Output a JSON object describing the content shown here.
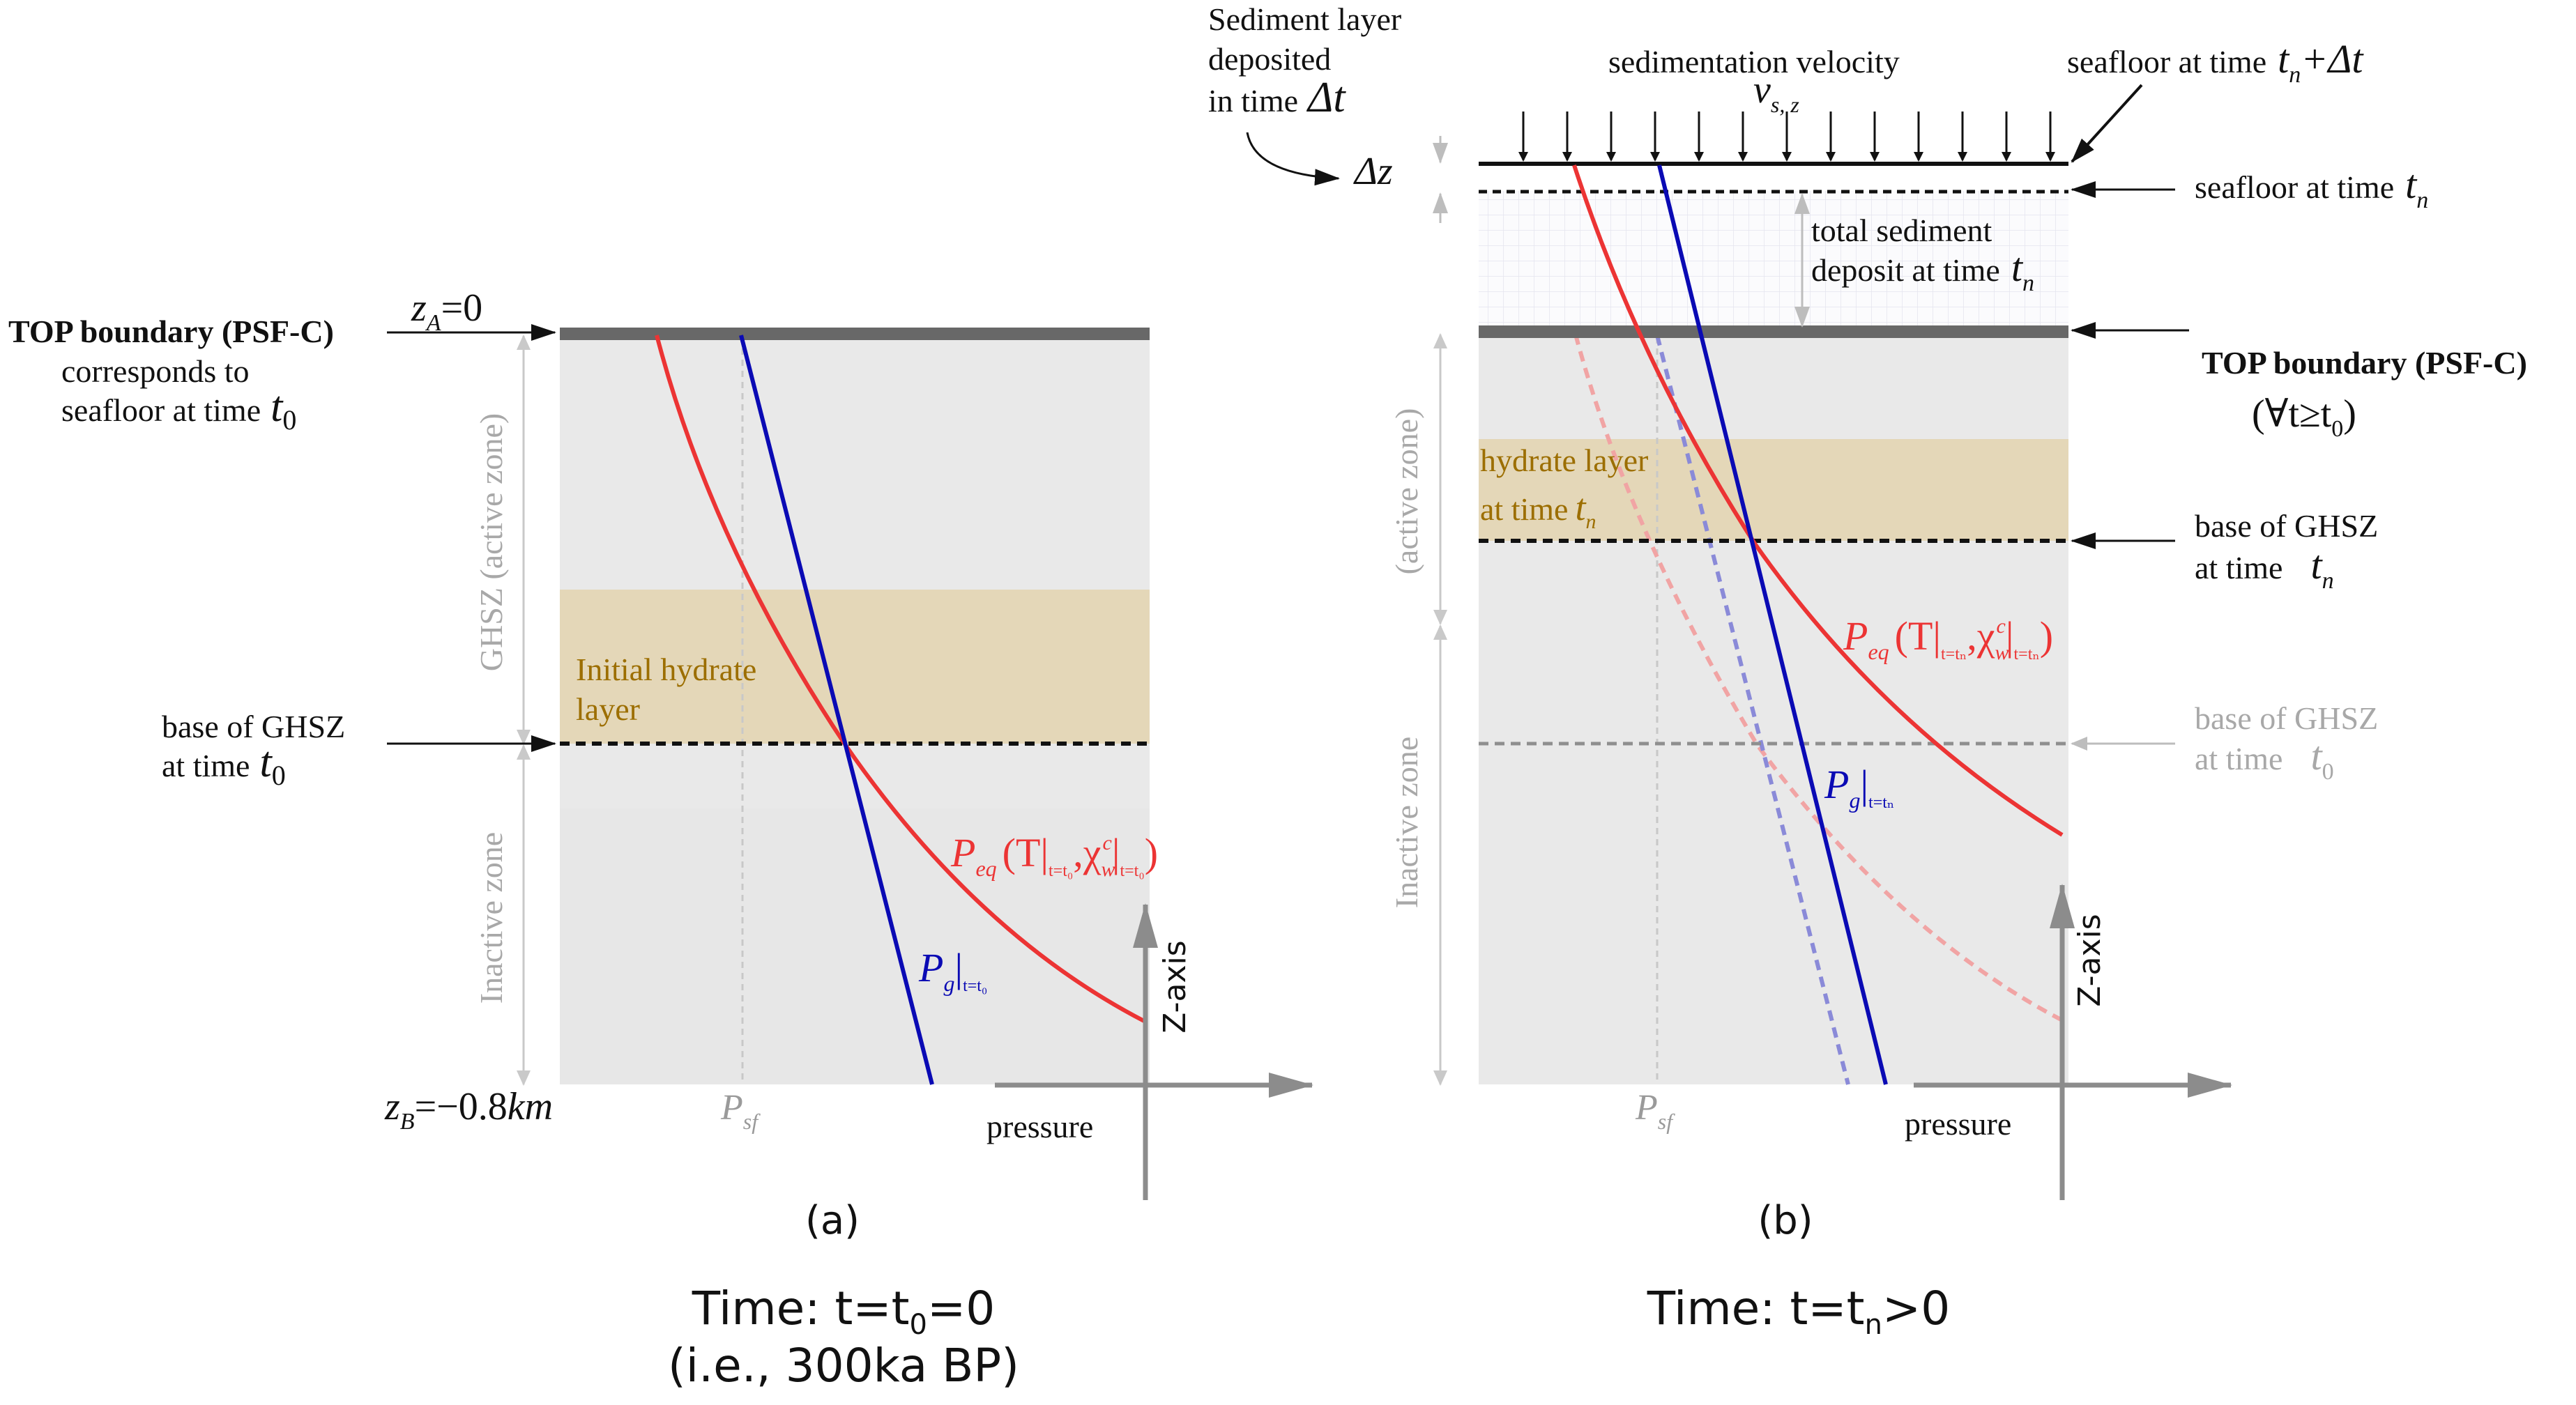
{
  "colors": {
    "background": "#ffffff",
    "zone_fill": "#e9e9e9",
    "hydrate_fill": "#e4d7b8",
    "hydrate_text": "#9c6e00",
    "boundary": "#686868",
    "red_curve": "#ec3434",
    "red_faded": "#f1a4a4",
    "blue_curve": "#0a0ab4",
    "blue_faded": "#8a8ad8",
    "gray_text": "#9a9a9a",
    "axis": "#8c8c8c",
    "black": "#111111"
  },
  "panel_a": {
    "caption": "(a)",
    "time_label": "Time: t=t",
    "time_sub": "0",
    "time_suffix": "=0",
    "time_note": "(i.e., 300ka BP)",
    "top_boundary": "TOP boundary (PSF-C)",
    "corresponds_to": "corresponds to",
    "seafloor_at_time": "seafloor at time",
    "t0": "t",
    "t0_sub": "0",
    "za_label": "z",
    "za_sub": "A",
    "za_value": "=0",
    "zb_label": "z",
    "zb_sub": "B",
    "zb_value": "=−0.8",
    "zb_unit": "km",
    "ghsz_label": "GHSZ (active zone)",
    "inactive_label": "Inactive zone",
    "hydrate_label_1": "Initial hydrate",
    "hydrate_label_2": "layer",
    "base_ghsz": "base of GHSZ",
    "at_time": "at time",
    "peq": "P",
    "peq_sub": "eq",
    "peq_args": "(T|",
    "peq_t_sub": "t=t₀",
    "peq_chi": ",χ",
    "peq_chi_sub": "w",
    "peq_chi_sup": "c",
    "peq_close": "|",
    "peq_close_sub": "t=t₀",
    "peq_paren": ")",
    "pg": "P",
    "pg_sub": "g",
    "pg_bar": "|",
    "pg_t_sub": "t=t₀",
    "psf": "P",
    "psf_sub": "sf",
    "pressure": "pressure",
    "zaxis": "Z-axis"
  },
  "panel_b": {
    "caption": "(b)",
    "time_label": "Time: t=t",
    "time_sub": "n",
    "time_suffix": ">0",
    "sediment_1": "Sediment layer",
    "sediment_2": "deposited",
    "sediment_3": "in time",
    "delta_t": "Δt",
    "sed_velocity": "sedimentation velocity",
    "v": "v",
    "v_sub": "s, z",
    "seafloor_tn_dt": "seafloor at time",
    "tn_dt": "t",
    "tn_dt_sub": "n",
    "tn_dt_suffix": "+Δt",
    "delta_z": "Δz",
    "seafloor_tn": "seafloor at time",
    "tn": "t",
    "tn_sub": "n",
    "total_sed_1": "total sediment",
    "total_sed_2": "deposit at time",
    "top_boundary": "TOP boundary (PSF-C)",
    "forall": "(∀t≥t",
    "forall_sub": "0",
    "forall_close": ")",
    "active_label": "(active zone)",
    "inactive_label": "Inactive zone",
    "hydrate_label_1": "hydrate layer",
    "hydrate_label_2": "at time",
    "base_ghsz": "base of GHSZ",
    "at_time": "at time",
    "base_ghsz_old": "base of GHSZ",
    "at_time_old": "at time",
    "t0": "t",
    "t0_sub": "0",
    "peq": "P",
    "peq_sub": "eq",
    "peq_args": "(T|",
    "peq_t_sub": "t=tₙ",
    "peq_chi": ",χ",
    "peq_chi_sub": "w",
    "peq_chi_sup": "c",
    "peq_close": "|",
    "peq_close_sub": "t=tₙ",
    "peq_paren": ")",
    "pg": "P",
    "pg_sub": "g",
    "pg_bar": "|",
    "pg_t_sub": "t=tₙ",
    "psf": "P",
    "psf_sub": "sf",
    "pressure": "pressure",
    "zaxis": "Z-axis"
  }
}
